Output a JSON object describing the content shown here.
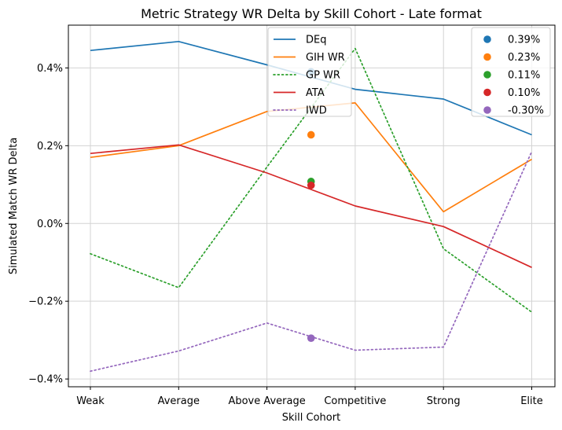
{
  "chart_data": {
    "type": "line",
    "title": "Metric Strategy WR Delta by Skill Cohort - Late format",
    "xlabel": "Skill Cohort",
    "ylabel": "Simulated Match WR Delta",
    "categories": [
      "Weak",
      "Average",
      "Above Average",
      "Competitive",
      "Strong",
      "Elite"
    ],
    "ylim": [
      -0.42,
      0.51
    ],
    "yticks": [
      -0.4,
      -0.2,
      0.0,
      0.2,
      0.4
    ],
    "ytick_labels": [
      "−0.4%",
      "−0.2%",
      "0.0%",
      "0.2%",
      "0.4%"
    ],
    "grid": true,
    "series": [
      {
        "name": "DEq",
        "color": "#1f77b4",
        "style": "solid",
        "values": [
          0.445,
          0.468,
          0.408,
          0.345,
          0.32,
          0.228
        ]
      },
      {
        "name": "GIH WR",
        "color": "#ff7f0e",
        "style": "solid",
        "values": [
          0.17,
          0.2,
          0.288,
          0.31,
          0.03,
          0.165
        ]
      },
      {
        "name": "GP WR",
        "color": "#2ca02c",
        "style": "dotted",
        "values": [
          -0.078,
          -0.165,
          0.145,
          0.45,
          -0.065,
          -0.228
        ]
      },
      {
        "name": "ATA",
        "color": "#d62728",
        "style": "solid",
        "values": [
          0.18,
          0.202,
          0.13,
          0.045,
          -0.008,
          -0.113
        ]
      },
      {
        "name": "IWD",
        "color": "#9467bd",
        "style": "dotted",
        "values": [
          -0.38,
          -0.328,
          -0.256,
          -0.326,
          -0.318,
          0.185
        ]
      }
    ],
    "average_markers": {
      "x_position": 2.5,
      "points": [
        {
          "label": "0.39%",
          "value": 0.39,
          "color": "#1f77b4"
        },
        {
          "label": "0.23%",
          "value": 0.228,
          "color": "#ff7f0e"
        },
        {
          "label": "0.11%",
          "value": 0.108,
          "color": "#2ca02c"
        },
        {
          "label": "0.10%",
          "value": 0.098,
          "color": "#d62728"
        },
        {
          "label": "-0.30%",
          "value": -0.295,
          "color": "#9467bd"
        }
      ]
    },
    "legend_series_placement": "top-center",
    "legend_markers_placement": "top-right"
  }
}
